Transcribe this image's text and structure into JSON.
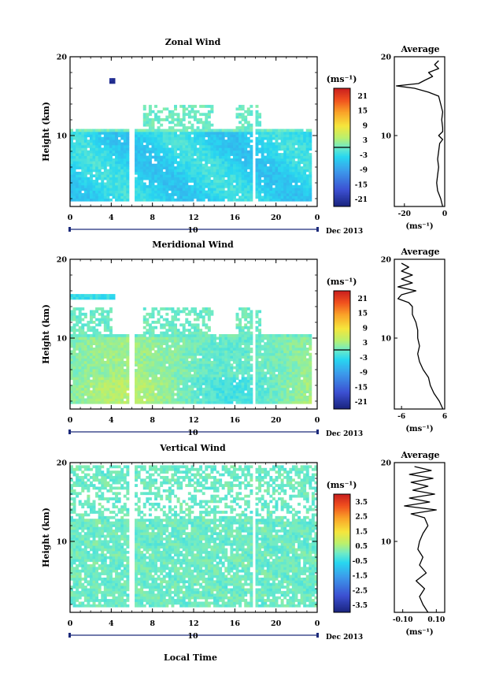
{
  "chart_data": [
    {
      "type": "heatmap",
      "title": "Zonal Wind",
      "ylabel": "Height (km)",
      "unit_label": "(ms⁻¹)",
      "x_ticks": [
        "0",
        "4",
        "8",
        "12",
        "16",
        "20",
        "0"
      ],
      "y_ticks": [
        "10",
        "20"
      ],
      "xlim": [
        0,
        24
      ],
      "ylim": [
        1,
        20
      ],
      "colorbar": {
        "ticks": [
          "21",
          "15",
          "9",
          "3",
          "-3",
          "-9",
          "-15",
          "-21"
        ],
        "range": [
          -24,
          24
        ],
        "zero_line": true
      },
      "date_axis": {
        "day": "10",
        "month_label": "Dec 2013"
      },
      "regime": "zonal",
      "average_profile": {
        "title": "Average",
        "x_ticks": [
          "-20",
          "0"
        ],
        "xlim": [
          -25,
          0
        ],
        "y_ticks": [
          "10",
          "20"
        ],
        "xlabel": "(ms⁻¹)",
        "heights": [
          1,
          2,
          3,
          4,
          5,
          6,
          7,
          8,
          9,
          9.5,
          10,
          10.5,
          11,
          12,
          13,
          14,
          15,
          15.5,
          16,
          16.3,
          16.6,
          17,
          17.5,
          18,
          18.5,
          19,
          19.5
        ],
        "values": [
          -1,
          -2,
          -3.5,
          -4,
          -3.5,
          -3,
          -3.5,
          -3,
          -2.5,
          -1,
          -3,
          -1,
          -1,
          -1.5,
          -1,
          -2,
          -3,
          -8,
          -15,
          -24,
          -13,
          -10,
          -6,
          -8,
          -3,
          -5,
          -3
        ]
      }
    },
    {
      "type": "heatmap",
      "title": "Meridional Wind",
      "ylabel": "Height (km)",
      "unit_label": "(ms⁻¹)",
      "x_ticks": [
        "0",
        "4",
        "8",
        "12",
        "16",
        "20",
        "0"
      ],
      "y_ticks": [
        "10",
        "20"
      ],
      "xlim": [
        0,
        24
      ],
      "ylim": [
        1,
        20
      ],
      "colorbar": {
        "ticks": [
          "21",
          "15",
          "9",
          "3",
          "-3",
          "-9",
          "-15",
          "-21"
        ],
        "range": [
          -24,
          24
        ],
        "zero_line": true
      },
      "date_axis": {
        "day": "10",
        "month_label": "Dec 2013"
      },
      "regime": "meridional",
      "average_profile": {
        "title": "Average",
        "x_ticks": [
          "-6",
          "6"
        ],
        "xlim": [
          -8,
          6
        ],
        "y_ticks": [
          "10",
          "20"
        ],
        "xlabel": "(ms⁻¹)",
        "heights": [
          1,
          2,
          3,
          4,
          5,
          6,
          7,
          8,
          9,
          10,
          11,
          12,
          13,
          14,
          14.5,
          15,
          15.5,
          16,
          16.5,
          17,
          17.5,
          18,
          18.5,
          19,
          19.5
        ],
        "values": [
          5.5,
          4.5,
          3,
          2,
          1.5,
          0,
          -1,
          -1.5,
          -1,
          -1.5,
          -1.5,
          -2,
          -3,
          -3,
          -4,
          -7,
          -6,
          -2,
          -7,
          -3,
          -6,
          -3,
          -6,
          -4,
          -6
        ]
      }
    },
    {
      "type": "heatmap",
      "title": "Vertical Wind",
      "ylabel": "Height (km)",
      "xlabel": "Local Time",
      "unit_label": "(ms⁻¹)",
      "x_ticks": [
        "0",
        "4",
        "8",
        "12",
        "16",
        "20",
        "0"
      ],
      "y_ticks": [
        "10",
        "20"
      ],
      "xlim": [
        0,
        24
      ],
      "ylim": [
        1,
        20
      ],
      "colorbar": {
        "ticks": [
          "3.5",
          "2.5",
          "1.5",
          "0.5",
          "-0.5",
          "-1.5",
          "-2.5",
          "-3.5"
        ],
        "range": [
          -4,
          4
        ],
        "zero_line": false
      },
      "date_axis": {
        "day": "10",
        "month_label": "Dec 2013"
      },
      "regime": "vertical",
      "average_profile": {
        "title": "Average",
        "x_ticks": [
          "-0.10",
          "0.10"
        ],
        "xlim": [
          -0.15,
          0.15
        ],
        "y_ticks": [
          "10",
          "20"
        ],
        "xlabel": "(ms⁻¹)",
        "heights": [
          1,
          2,
          3,
          4,
          5,
          6,
          7,
          8,
          9,
          10,
          11,
          12,
          13,
          13.5,
          14,
          14.5,
          15,
          15.5,
          16,
          16.5,
          17,
          17.5,
          18,
          18.5,
          19,
          19.5
        ],
        "values": [
          0.05,
          0.02,
          0.0,
          0.03,
          -0.02,
          0.04,
          0.0,
          0.02,
          -0.01,
          0.0,
          0.02,
          0.05,
          0.03,
          -0.05,
          0.1,
          -0.09,
          0.06,
          -0.06,
          0.09,
          -0.04,
          0.05,
          -0.05,
          0.08,
          -0.06,
          0.07,
          -0.03
        ]
      }
    }
  ]
}
